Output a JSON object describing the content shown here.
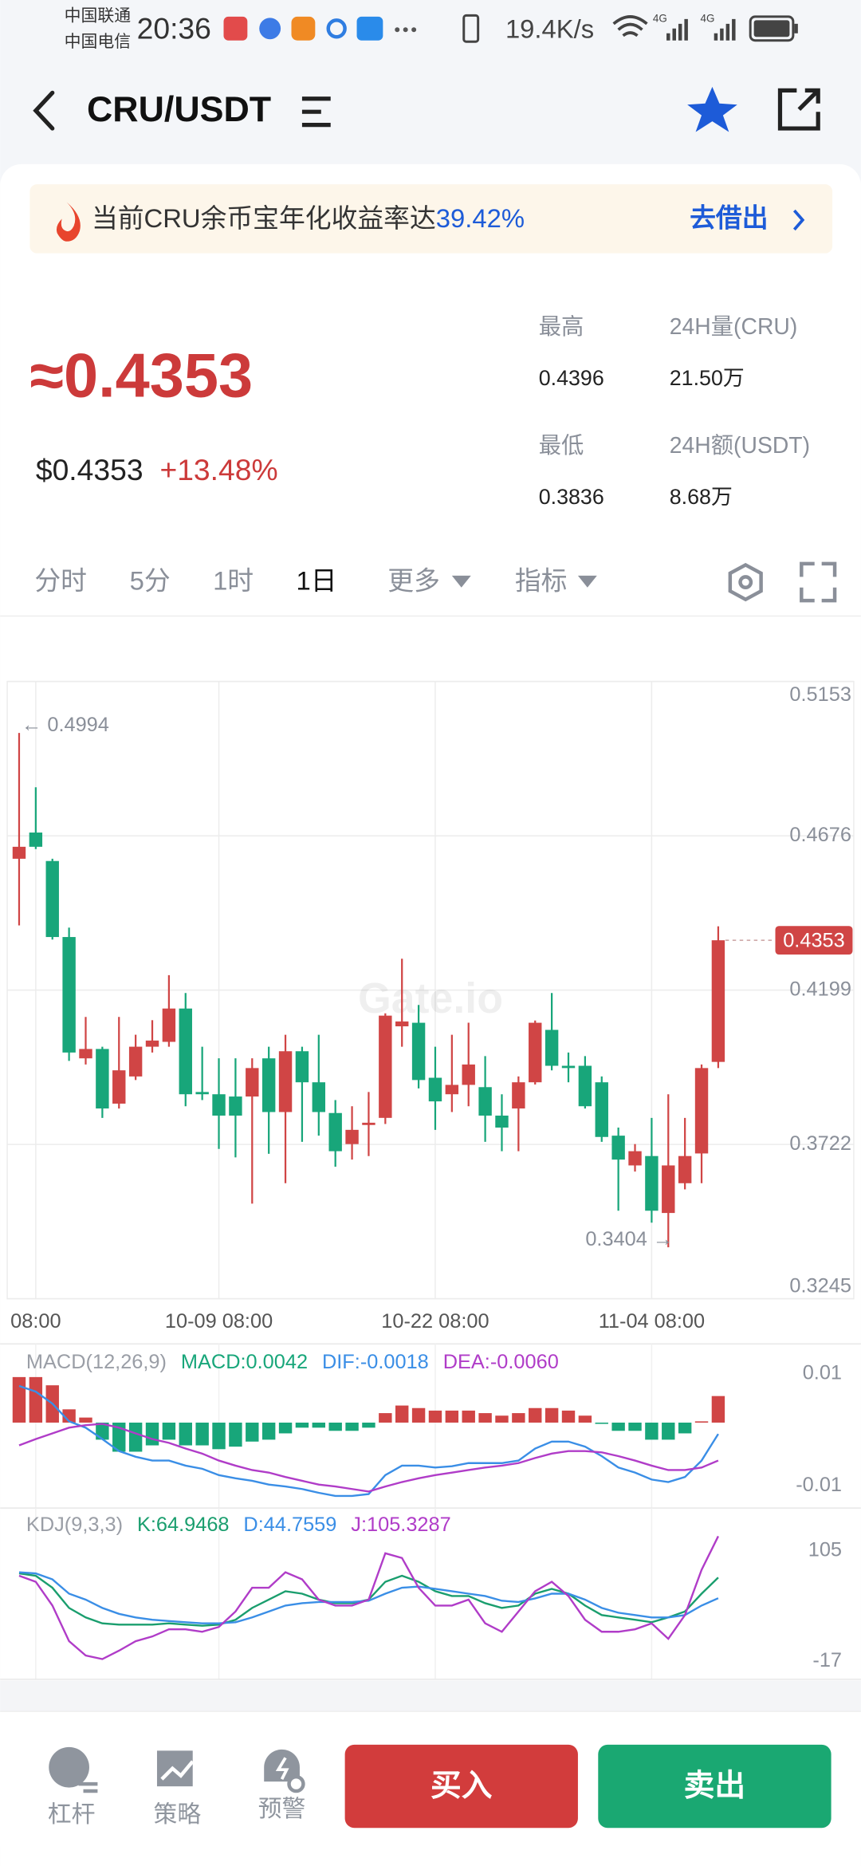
{
  "status_bar": {
    "carrier_1": "中国联通",
    "carrier_2": "中国电信",
    "time": "20:36",
    "speed": "19.4K/s",
    "network_1": "4G",
    "network_2": "4G"
  },
  "header": {
    "pair": "CRU/USDT"
  },
  "banner": {
    "text": "当前CRU余币宝年化收益率达",
    "rate": "39.42%",
    "action": "去借出"
  },
  "ticker": {
    "price": "≈0.4353",
    "usd_price": "$0.4353",
    "change": "+13.48%",
    "stats": [
      {
        "label": "最高",
        "value": "0.4396"
      },
      {
        "label": "24H量(CRU)",
        "value": "21.50万"
      },
      {
        "label": "最低",
        "value": "0.3836"
      },
      {
        "label": "24H额(USDT)",
        "value": "8.68万"
      }
    ]
  },
  "tabs": [
    "分时",
    "5分",
    "1时",
    "1日",
    "更多",
    "指标"
  ],
  "active_tab": 3,
  "chart_data": [
    {
      "type": "candlestick",
      "watermark": "Gate.io",
      "up_color": "#d04545",
      "down_color": "#18a67a",
      "categories": [
        null,
        "08:00",
        null,
        null,
        null,
        null,
        null,
        null,
        null,
        null,
        null,
        null,
        "10-09 08:00",
        null,
        null,
        null,
        null,
        null,
        null,
        null,
        null,
        null,
        null,
        null,
        null,
        "10-22 08:00",
        null,
        null,
        null,
        null,
        null,
        null,
        null,
        null,
        null,
        null,
        null,
        null,
        "11-04 08:00",
        null,
        null,
        null,
        null
      ],
      "open": [
        0.4605,
        0.4686,
        0.4598,
        0.4363,
        0.3988,
        0.4017,
        0.3848,
        0.3932,
        0.4024,
        0.4039,
        0.4142,
        0.3884,
        0.3877,
        0.387,
        0.387,
        0.3988,
        0.3822,
        0.401,
        0.3914,
        0.3819,
        0.3723,
        0.3782,
        0.3804,
        0.4087,
        0.4098,
        0.3928,
        0.3877,
        0.3906,
        0.3899,
        0.3811,
        0.3833,
        0.3914,
        0.4076,
        0.3965,
        0.3965,
        0.3914,
        0.3749,
        0.3657,
        0.3686,
        0.351,
        0.3602,
        0.3694,
        0.3977
      ],
      "high": [
        0.4994,
        0.4826,
        0.4605,
        0.4392,
        0.4116,
        0.4024,
        0.4116,
        0.4061,
        0.4106,
        0.4245,
        0.419,
        0.4024,
        0.3988,
        0.3988,
        0.3988,
        0.4024,
        0.4061,
        0.4024,
        0.4061,
        0.3859,
        0.384,
        0.3884,
        0.4127,
        0.4296,
        0.4153,
        0.4024,
        0.4061,
        0.4098,
        0.3995,
        0.3877,
        0.3932,
        0.4105,
        0.419,
        0.4006,
        0.3995,
        0.3932,
        0.3774,
        0.3723,
        0.3804,
        0.3877,
        0.3804,
        0.3969,
        0.4396
      ],
      "low": [
        0.4399,
        0.4635,
        0.4355,
        0.398,
        0.3969,
        0.3804,
        0.3833,
        0.3921,
        0.4006,
        0.4024,
        0.384,
        0.3859,
        0.3708,
        0.3682,
        0.3539,
        0.3693,
        0.3602,
        0.373,
        0.3749,
        0.3653,
        0.3675,
        0.3686,
        0.3785,
        0.4024,
        0.3895,
        0.3767,
        0.3822,
        0.384,
        0.373,
        0.3701,
        0.3701,
        0.3907,
        0.3951,
        0.3914,
        0.3833,
        0.373,
        0.3517,
        0.3638,
        0.348,
        0.3404,
        0.3583,
        0.3602,
        0.3958
      ],
      "close": [
        0.4642,
        0.4642,
        0.4363,
        0.4006,
        0.4017,
        0.3833,
        0.3951,
        0.4024,
        0.4043,
        0.4142,
        0.3877,
        0.3877,
        0.3811,
        0.3811,
        0.3958,
        0.3822,
        0.401,
        0.3914,
        0.3822,
        0.3701,
        0.3767,
        0.3789,
        0.412,
        0.4102,
        0.3921,
        0.3855,
        0.3906,
        0.3969,
        0.3811,
        0.3774,
        0.3914,
        0.4098,
        0.3965,
        0.3958,
        0.384,
        0.3745,
        0.3675,
        0.3701,
        0.3517,
        0.3657,
        0.3686,
        0.3958,
        0.4353
      ],
      "high_label": "← 0.4994",
      "low_label": "0.3404 →",
      "last_price": 0.4353,
      "ylim": [
        0.3245,
        0.5153
      ],
      "yticks": [
        0.5153,
        0.4676,
        0.4199,
        0.3722,
        0.3245
      ],
      "grid": true
    },
    {
      "type": "indicator",
      "title": "MACD(12,26,9)",
      "series": [
        {
          "name": "MACD:0.0042",
          "type": "bar",
          "color": "#18a67a",
          "up_color": "#d04545",
          "values": [
            0.0072,
            0.0072,
            0.0059,
            0.0021,
            0.0008,
            -0.0027,
            -0.0046,
            -0.0046,
            -0.0036,
            -0.0027,
            -0.0036,
            -0.0036,
            -0.0042,
            -0.0038,
            -0.003,
            -0.0027,
            -0.0017,
            -0.0008,
            -0.0008,
            -0.0013,
            -0.0013,
            -0.0008,
            0.0015,
            0.0027,
            0.0023,
            0.0019,
            0.0019,
            0.0019,
            0.0015,
            0.0011,
            0.0015,
            0.0023,
            0.0023,
            0.0019,
            0.0011,
            -0.0002,
            -0.0013,
            -0.0013,
            -0.0027,
            -0.0027,
            -0.0017,
            0.0002,
            0.0042
          ]
        },
        {
          "name": "DIF:-0.0018",
          "type": "line",
          "color": "#3a8ee6",
          "values": [
            0.0058,
            0.0049,
            0.003,
            0.0002,
            -0.0008,
            -0.0026,
            -0.0045,
            -0.0054,
            -0.006,
            -0.006,
            -0.0068,
            -0.0073,
            -0.0083,
            -0.0088,
            -0.0092,
            -0.0098,
            -0.0101,
            -0.0105,
            -0.0111,
            -0.0116,
            -0.0116,
            -0.0113,
            -0.0083,
            -0.0068,
            -0.0068,
            -0.0071,
            -0.0069,
            -0.0064,
            -0.0064,
            -0.0064,
            -0.006,
            -0.0041,
            -0.003,
            -0.003,
            -0.0038,
            -0.0053,
            -0.0071,
            -0.0079,
            -0.009,
            -0.0094,
            -0.0086,
            -0.006,
            -0.0018
          ]
        },
        {
          "name": "DEA:-0.0060",
          "type": "line",
          "color": "#b03cc8",
          "values": [
            -0.0036,
            -0.0026,
            -0.0017,
            -0.0008,
            -0.0004,
            -0.0002,
            -0.0008,
            -0.0017,
            -0.0026,
            -0.0032,
            -0.0041,
            -0.0049,
            -0.006,
            -0.0068,
            -0.0075,
            -0.0079,
            -0.0086,
            -0.0092,
            -0.0098,
            -0.0101,
            -0.0105,
            -0.0109,
            -0.0101,
            -0.0094,
            -0.0088,
            -0.0083,
            -0.0079,
            -0.0075,
            -0.0071,
            -0.0068,
            -0.0064,
            -0.0056,
            -0.0049,
            -0.0045,
            -0.0045,
            -0.0047,
            -0.0053,
            -0.006,
            -0.0068,
            -0.0075,
            -0.0075,
            -0.0071,
            -0.006
          ]
        }
      ],
      "ylim": [
        -0.012,
        0.01
      ],
      "yticks": [
        0.01,
        -0.01
      ]
    },
    {
      "type": "indicator",
      "title": "KDJ(9,3,3)",
      "series": [
        {
          "name": "K:64.9468",
          "type": "line",
          "color": "#1a9e6e",
          "values": [
            69.0,
            66.7,
            55.0,
            35.3,
            26.0,
            20.2,
            19.0,
            19.0,
            19.0,
            20.2,
            19.0,
            17.9,
            19.0,
            23.7,
            35.3,
            43.4,
            51.6,
            49.2,
            43.4,
            39.9,
            39.9,
            43.4,
            60.8,
            66.7,
            60.8,
            51.6,
            46.9,
            46.9,
            39.9,
            35.3,
            37.6,
            49.2,
            53.9,
            49.2,
            37.6,
            28.3,
            26.0,
            23.7,
            21.3,
            26.0,
            31.8,
            49.2,
            64.9468
          ]
        },
        {
          "name": "D:44.7559",
          "type": "line",
          "color": "#3a8ee6",
          "values": [
            70.1,
            69.0,
            63.2,
            49.2,
            43.4,
            35.3,
            29.5,
            26.0,
            23.7,
            22.5,
            21.3,
            20.2,
            20.2,
            21.3,
            26.0,
            31.8,
            37.6,
            39.9,
            41.1,
            41.1,
            41.1,
            42.3,
            49.2,
            55.0,
            56.2,
            53.9,
            51.6,
            49.2,
            46.9,
            42.3,
            41.1,
            44.6,
            49.2,
            49.2,
            43.4,
            35.3,
            30.6,
            28.3,
            26.0,
            26.0,
            28.3,
            37.6,
            44.7559
          ]
        },
        {
          "name": "J:105.3287",
          "type": "line",
          "color": "#b03cc8",
          "values": [
            66.7,
            60.8,
            37.6,
            2.8,
            -11.2,
            -14.7,
            -6.5,
            2.8,
            7.4,
            14.4,
            14.4,
            12.0,
            16.7,
            31.8,
            55.0,
            55.0,
            70.1,
            63.2,
            43.4,
            37.6,
            37.6,
            43.4,
            88.7,
            84.1,
            55.0,
            37.6,
            37.6,
            43.4,
            20.2,
            12.0,
            31.8,
            51.6,
            60.8,
            46.9,
            23.7,
            12.0,
            12.0,
            14.4,
            20.2,
            5.1,
            28.3,
            72.5,
            105.3287
          ]
        }
      ],
      "ylim": [
        -17,
        105
      ],
      "yticks": [
        105,
        -17
      ]
    }
  ],
  "bottom_bar": {
    "items": [
      "杠杆",
      "策略",
      "预警"
    ],
    "buy": "买入",
    "sell": "卖出"
  }
}
